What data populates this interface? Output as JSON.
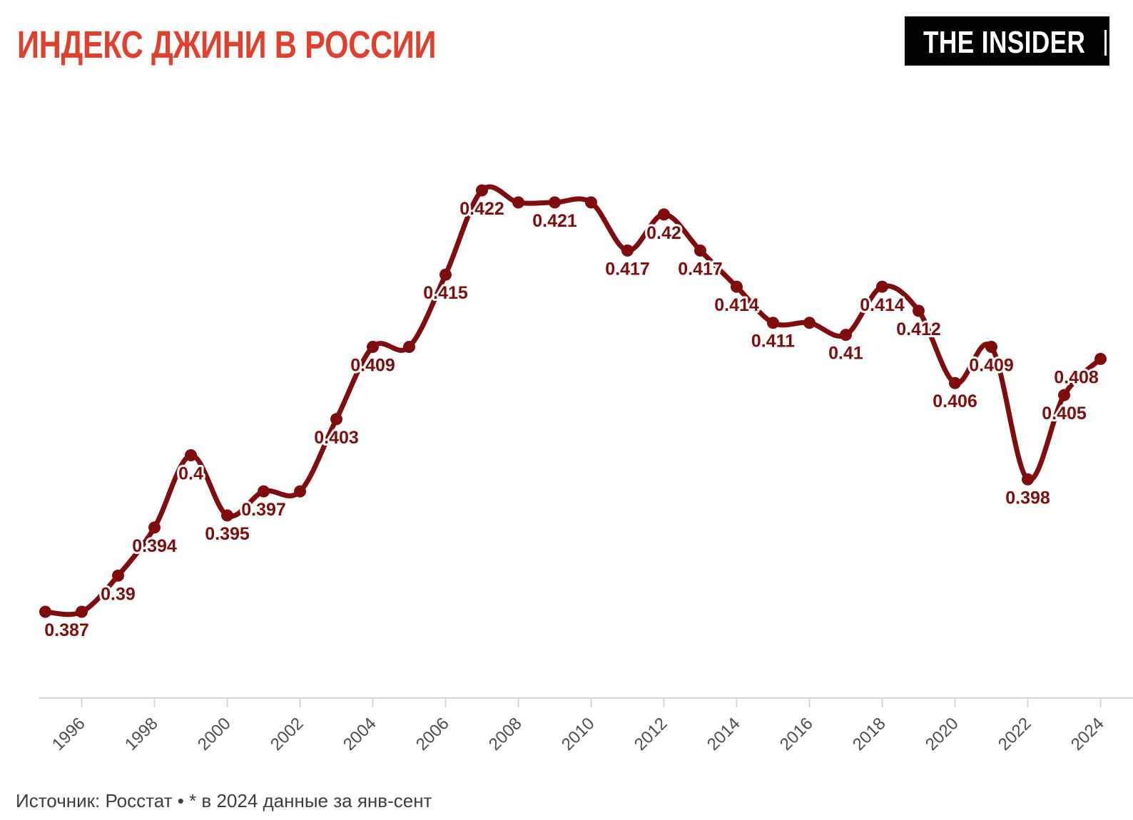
{
  "header": {
    "title": "ИНДЕКС ДЖИНИ В РОССИИ",
    "logo_text": "THE INSIDER"
  },
  "footer": {
    "source_text": "Источник: Росстат • * в 2024 данные за янв-сент"
  },
  "colors": {
    "accent_title": "#e0412e",
    "line": "#7f0d0d",
    "point_label": "#7f0d0d",
    "label_halo": "#ffffff",
    "axis_line": "#d6d6d6",
    "tick": "#d6d6d6",
    "year_label": "#4d4d4d",
    "source_text": "#3d3d3d",
    "logo_bg": "#000000",
    "logo_text": "#ffffff",
    "background": "#ffffff"
  },
  "chart_data": {
    "type": "line",
    "title": "ИНДЕКС ДЖИНИ В РОССИИ",
    "series_name": "Индекс Джини",
    "source": "Росстат",
    "footnote": "* в 2024 данные за янв-сент",
    "x": [
      1995,
      1996,
      1997,
      1998,
      1999,
      2000,
      2001,
      2002,
      2003,
      2004,
      2005,
      2006,
      2007,
      2008,
      2009,
      2010,
      2011,
      2012,
      2013,
      2014,
      2015,
      2016,
      2017,
      2018,
      2019,
      2020,
      2021,
      2022,
      2023,
      2024
    ],
    "values": [
      0.387,
      0.387,
      0.39,
      0.394,
      0.4,
      0.395,
      0.397,
      0.397,
      0.403,
      0.409,
      0.409,
      0.415,
      0.422,
      0.421,
      0.421,
      0.421,
      0.417,
      0.42,
      0.417,
      0.414,
      0.411,
      0.411,
      0.41,
      0.414,
      0.412,
      0.406,
      0.409,
      0.398,
      0.405,
      0.408
    ],
    "point_labels": [
      "0.387",
      null,
      "0.39",
      "0.394",
      "0.4",
      "0.395",
      "0.397",
      null,
      "0.403",
      "0.409",
      null,
      "0.415",
      "0.422",
      null,
      "0.421",
      null,
      "0.417",
      "0.42",
      "0.417",
      "0.414",
      "0.411",
      null,
      "0.41",
      "0.414",
      "0.412",
      "0.406",
      "0.409",
      "0.398",
      "0.405",
      "0.408"
    ],
    "x_ticks": [
      1996,
      1998,
      2000,
      2002,
      2004,
      2006,
      2008,
      2010,
      2012,
      2014,
      2016,
      2018,
      2020,
      2022,
      2024
    ],
    "ylim": [
      0.384,
      0.425
    ],
    "xlabel": "",
    "ylabel": "",
    "grid": false,
    "legend": "none"
  }
}
